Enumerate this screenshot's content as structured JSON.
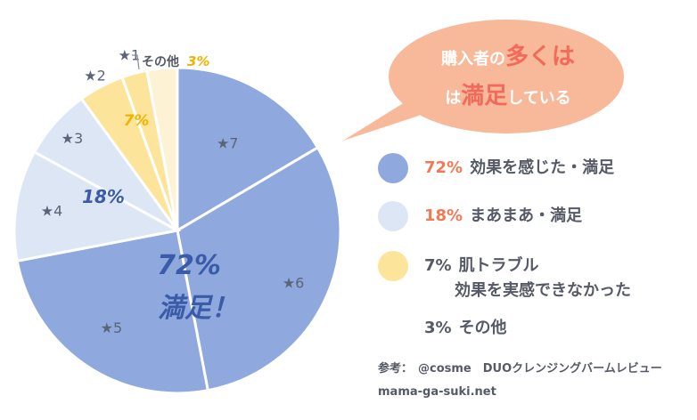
{
  "bubble": {
    "line1_prefix": "購入者の",
    "line1_emph": "多くは",
    "line2_prefix": "は",
    "line2_emph": "満足",
    "line2_suffix": "している"
  },
  "chart_data": {
    "type": "pie",
    "slices": [
      {
        "label": "★7",
        "value": 16.5,
        "color": "#8fa8dd"
      },
      {
        "label": "★6",
        "value": 30.5,
        "color": "#8fa8dd"
      },
      {
        "label": "★5",
        "value": 25.0,
        "color": "#8fa8dd"
      },
      {
        "label": "★4",
        "value": 11.0,
        "color": "#dde6f5"
      },
      {
        "label": "★3",
        "value": 7.0,
        "color": "#dde6f5"
      },
      {
        "label": "★2",
        "value": 4.5,
        "color": "#fce59a"
      },
      {
        "label": "★1",
        "value": 2.5,
        "color": "#fce59a"
      },
      {
        "label": "その他",
        "value": 3.0,
        "color": "#fdf2d3"
      }
    ],
    "group_labels": {
      "satisfied_pct": "72%",
      "satisfied_text": "満足！",
      "mid_pct": "18%",
      "skin_pct": "7%",
      "other_name": "その他",
      "other_pct": "3%"
    }
  },
  "legend": [
    {
      "pct": "72%",
      "text": "効果を感じた・満足",
      "sub": "",
      "color": "#8fa8dd"
    },
    {
      "pct": "18%",
      "text": "まあまあ・満足",
      "sub": "",
      "color": "#dde6f5"
    },
    {
      "pct": "7%",
      "text": "肌トラブル",
      "sub": "効果を実感できなかった",
      "color": "#fce59a"
    },
    {
      "pct": "3%",
      "text": "その他",
      "sub": "",
      "color": ""
    }
  ],
  "source": {
    "prefix": "参考：",
    "text": "@cosme　DUOクレンジングバームレビュー",
    "site": "mama-ga-suki.net"
  }
}
